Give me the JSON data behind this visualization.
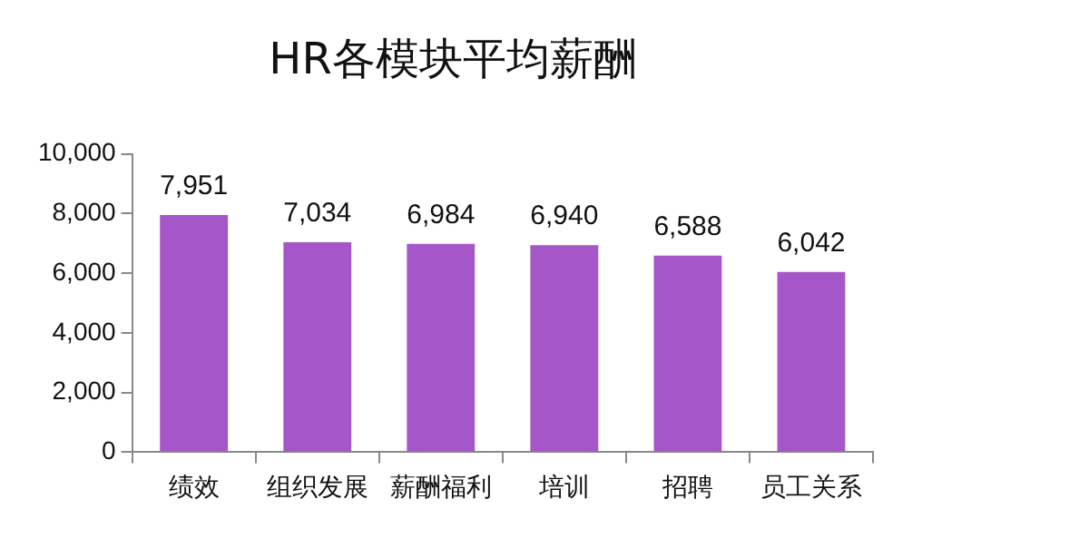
{
  "chart_data": {
    "type": "bar",
    "title": "HR各模块平均薪酬",
    "categories": [
      "绩效",
      "组织发展",
      "薪酬福利",
      "培训",
      "招聘",
      "员工关系"
    ],
    "values": [
      7951,
      7034,
      6984,
      6940,
      6588,
      6042
    ],
    "color": "#a556c8",
    "value_labels": [
      "7,951",
      "7,034",
      "6,984",
      "6,940",
      "6,588",
      "6,042"
    ],
    "ylim": [
      0,
      10000
    ],
    "yticks": [
      {
        "value": 0,
        "label": "0"
      },
      {
        "value": 2000,
        "label": "2,000"
      },
      {
        "value": 4000,
        "label": "4,000"
      },
      {
        "value": 6000,
        "label": "6,000"
      },
      {
        "value": 8000,
        "label": "8,000"
      },
      {
        "value": 10000,
        "label": "10,000"
      }
    ],
    "grid": false,
    "legend": false
  }
}
